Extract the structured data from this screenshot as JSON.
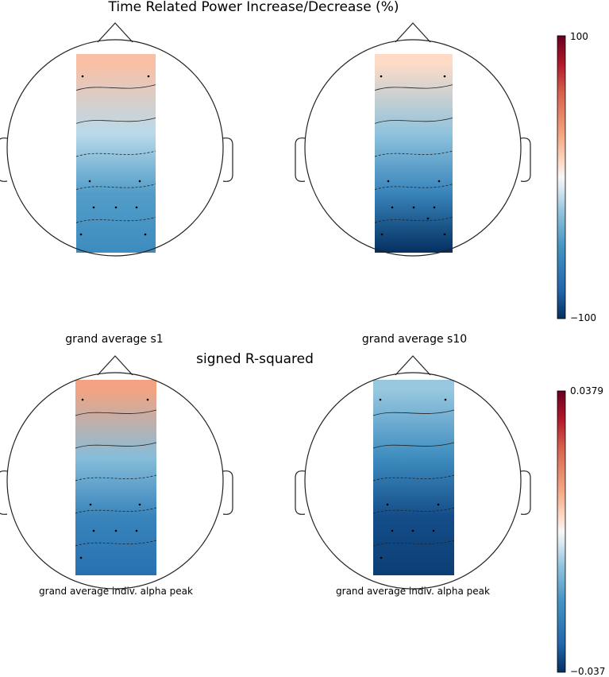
{
  "chart_data": [
    {
      "type": "heatmap",
      "subtype": "scalp-topography",
      "title": "Time Related Power Increase/Decrease (%)",
      "colormap": "RdBu_r",
      "colorbar": {
        "min": -100,
        "max": 100,
        "min_label": "−100",
        "max_label": "100"
      },
      "panels": [
        {
          "subtitle": "grand average s1",
          "region": "central-posterior strip",
          "sensors": 9,
          "values": {
            "frontal": 20,
            "central": -15,
            "parietal": -45,
            "occipital": -55
          }
        },
        {
          "subtitle": "grand average s10",
          "region": "central-posterior strip",
          "sensors": 10,
          "values": {
            "frontal": 10,
            "central": -25,
            "parietal": -60,
            "occipital": -100
          }
        }
      ]
    },
    {
      "type": "heatmap",
      "subtype": "scalp-topography",
      "title": "signed R-squared",
      "colormap": "RdBu_r",
      "colorbar": {
        "min": -0.037,
        "max": 0.0379,
        "min_label": "−0.037",
        "max_label": "0.0379"
      },
      "panels": [
        {
          "subtitle": "grand average indiv. alpha peak",
          "region": "central-posterior strip",
          "sensors": 9,
          "values": {
            "frontal": 0.012,
            "central": -0.01,
            "parietal": -0.022,
            "occipital": -0.027
          }
        },
        {
          "subtitle": "grand average indiv. alpha peak",
          "region": "central-posterior strip",
          "sensors": 8,
          "values": {
            "frontal": -0.008,
            "central": -0.02,
            "parietal": -0.033,
            "occipital": -0.035
          }
        }
      ]
    }
  ]
}
